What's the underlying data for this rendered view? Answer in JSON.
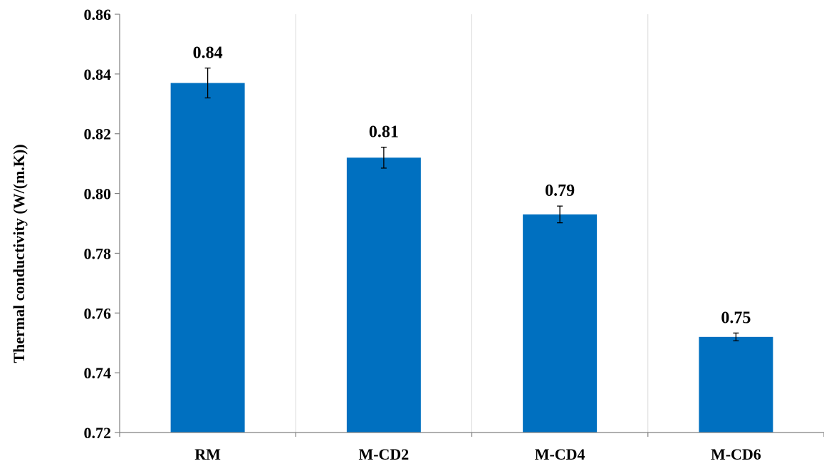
{
  "chart_data": {
    "type": "bar",
    "title": "",
    "xlabel": "",
    "ylabel": "Thermal conductivity (W/(m.K))",
    "ylim": [
      0.72,
      0.86
    ],
    "yticks": [
      "0.72",
      "0.74",
      "0.76",
      "0.78",
      "0.80",
      "0.82",
      "0.84",
      "0.86"
    ],
    "ytick_values": [
      0.72,
      0.74,
      0.76,
      0.78,
      0.8,
      0.82,
      0.84,
      0.86
    ],
    "categories": [
      "RM",
      "M-CD2",
      "M-CD4",
      "M-CD6"
    ],
    "values": [
      0.837,
      0.812,
      0.793,
      0.752
    ],
    "data_labels": [
      "0.84",
      "0.81",
      "0.79",
      "0.75"
    ],
    "error": [
      0.005,
      0.0035,
      0.0028,
      0.0013
    ],
    "grid": "vertical",
    "legend": "none",
    "bar_color": "#0070C0"
  }
}
